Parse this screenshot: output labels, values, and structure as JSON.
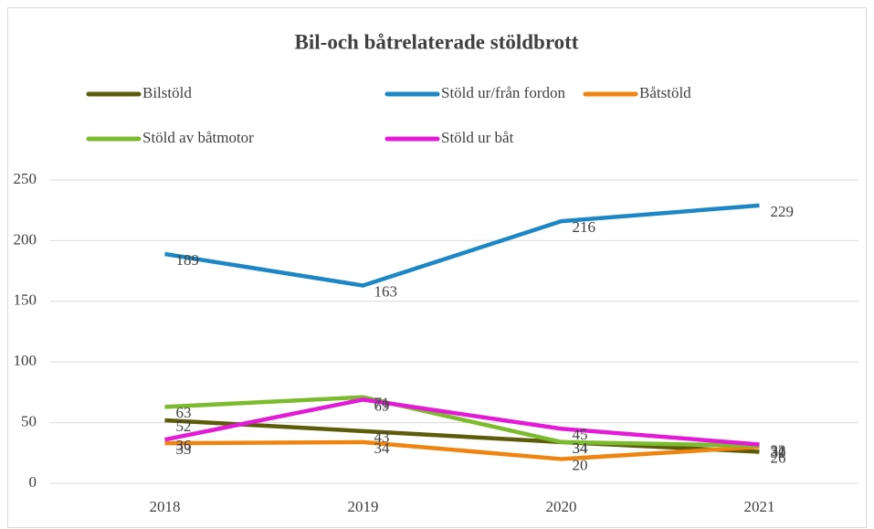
{
  "chart_data": {
    "type": "line",
    "title": "Bil-och båtrelaterade stöldbrott",
    "categories": [
      "2018",
      "2019",
      "2020",
      "2021"
    ],
    "series": [
      {
        "name": "Bilstöld",
        "color": "#5c5c0a",
        "values": [
          52,
          43,
          34,
          26
        ]
      },
      {
        "name": "Stöld ur/från fordon",
        "color": "#1d86c4",
        "values": [
          189,
          163,
          216,
          229
        ]
      },
      {
        "name": "Båtstöld",
        "color": "#ef8510",
        "values": [
          33,
          34,
          20,
          30
        ]
      },
      {
        "name": "Stöld av båtmotor",
        "color": "#7cba2e",
        "values": [
          63,
          71,
          34,
          31
        ]
      },
      {
        "name": "Stöld ur båt",
        "color": "#e31bd6",
        "values": [
          36,
          69,
          45,
          32
        ]
      }
    ],
    "ylim": [
      0,
      250
    ],
    "yticks": [
      0,
      50,
      100,
      150,
      200,
      250
    ],
    "grid": true,
    "legend": "top"
  }
}
